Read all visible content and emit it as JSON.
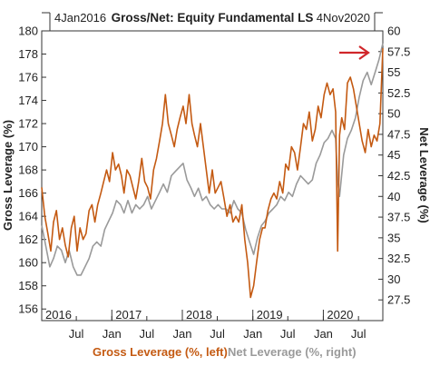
{
  "chart_data": {
    "type": "line",
    "title": "Gross/Net: Equity Fundamental LS",
    "start_label": "4Jan2016",
    "end_label": "4Nov2020",
    "ylabel_left": "Gross Leverage (%)",
    "ylabel_right": "Net Leverage (%)",
    "ylim_left": [
      155,
      180
    ],
    "ylim_right": [
      25,
      60
    ],
    "yticks_left": [
      156,
      158,
      160,
      162,
      164,
      166,
      168,
      170,
      172,
      174,
      176,
      178,
      180
    ],
    "yticks_right": [
      "27.5",
      "30",
      "32.5",
      "35",
      "37.5",
      "40",
      "42.5",
      "45",
      "47.5",
      "50",
      "52.5",
      "55",
      "57.5",
      "60"
    ],
    "x_range": [
      "2016-01-04",
      "2020-11-04"
    ],
    "x_month_ticks": [
      {
        "date": "2016-07-01",
        "label": "Jul"
      },
      {
        "date": "2017-01-01",
        "label": "Jan"
      },
      {
        "date": "2017-07-01",
        "label": "Jul"
      },
      {
        "date": "2018-01-01",
        "label": "Jan"
      },
      {
        "date": "2018-07-01",
        "label": "Jul"
      },
      {
        "date": "2019-01-01",
        "label": "Jan"
      },
      {
        "date": "2019-07-01",
        "label": "Jul"
      },
      {
        "date": "2020-01-01",
        "label": "Jan"
      },
      {
        "date": "2020-07-01",
        "label": "Jul"
      }
    ],
    "x_year_labels": [
      {
        "date": "2016-01-04",
        "label": "2016"
      },
      {
        "date": "2017-01-01",
        "label": "2017"
      },
      {
        "date": "2018-01-01",
        "label": "2018"
      },
      {
        "date": "2019-01-01",
        "label": "2019"
      },
      {
        "date": "2020-01-01",
        "label": "2020"
      }
    ],
    "legend": [
      {
        "name": "Gross Leverage (%, left)",
        "color": "#c45a12"
      },
      {
        "name": "Net Leverage (%, right)",
        "color": "#9a9a9a"
      }
    ],
    "annotation": {
      "type": "arrow",
      "color": "#d0262a",
      "points_to": "2020-11-04"
    },
    "grid": false,
    "series": [
      {
        "name": "Gross Leverage (%, left)",
        "axis": "left",
        "color": "#c45a12",
        "x": [
          "2016-01-04",
          "2016-01-20",
          "2016-02-05",
          "2016-02-20",
          "2016-03-05",
          "2016-03-20",
          "2016-04-05",
          "2016-04-20",
          "2016-05-05",
          "2016-05-20",
          "2016-06-05",
          "2016-06-20",
          "2016-07-05",
          "2016-07-20",
          "2016-08-05",
          "2016-08-20",
          "2016-09-05",
          "2016-09-20",
          "2016-10-05",
          "2016-10-20",
          "2016-11-05",
          "2016-11-20",
          "2016-12-05",
          "2016-12-20",
          "2017-01-05",
          "2017-01-20",
          "2017-02-05",
          "2017-02-20",
          "2017-03-05",
          "2017-03-20",
          "2017-04-05",
          "2017-04-20",
          "2017-05-05",
          "2017-05-20",
          "2017-06-05",
          "2017-06-20",
          "2017-07-05",
          "2017-07-20",
          "2017-08-05",
          "2017-08-20",
          "2017-09-05",
          "2017-09-20",
          "2017-10-05",
          "2017-10-20",
          "2017-11-05",
          "2017-11-20",
          "2017-12-05",
          "2017-12-20",
          "2018-01-05",
          "2018-01-20",
          "2018-02-05",
          "2018-02-20",
          "2018-03-05",
          "2018-03-20",
          "2018-04-05",
          "2018-04-20",
          "2018-05-05",
          "2018-05-20",
          "2018-06-05",
          "2018-06-20",
          "2018-07-05",
          "2018-07-20",
          "2018-08-05",
          "2018-08-20",
          "2018-09-05",
          "2018-09-20",
          "2018-10-05",
          "2018-10-20",
          "2018-11-05",
          "2018-11-20",
          "2018-12-05",
          "2018-12-20",
          "2019-01-05",
          "2019-01-20",
          "2019-02-05",
          "2019-02-20",
          "2019-03-05",
          "2019-03-20",
          "2019-04-05",
          "2019-04-20",
          "2019-05-05",
          "2019-05-20",
          "2019-06-05",
          "2019-06-20",
          "2019-07-05",
          "2019-07-20",
          "2019-08-05",
          "2019-08-20",
          "2019-09-05",
          "2019-09-20",
          "2019-10-05",
          "2019-10-20",
          "2019-11-05",
          "2019-11-20",
          "2019-12-05",
          "2019-12-20",
          "2020-01-05",
          "2020-01-20",
          "2020-02-05",
          "2020-02-20",
          "2020-03-05",
          "2020-03-15",
          "2020-03-25",
          "2020-04-05",
          "2020-04-20",
          "2020-05-05",
          "2020-05-20",
          "2020-06-05",
          "2020-06-20",
          "2020-07-05",
          "2020-07-20",
          "2020-08-05",
          "2020-08-20",
          "2020-09-05",
          "2020-09-20",
          "2020-10-05",
          "2020-10-20",
          "2020-11-04"
        ],
        "values": [
          166.5,
          164.0,
          162.5,
          161.0,
          163.5,
          164.5,
          162.0,
          163.0,
          161.5,
          160.5,
          163.0,
          164.0,
          161.0,
          163.0,
          162.0,
          162.5,
          164.5,
          165.0,
          163.5,
          165.0,
          166.0,
          167.0,
          168.0,
          167.0,
          169.5,
          168.0,
          168.5,
          167.5,
          166.0,
          168.0,
          167.5,
          166.5,
          165.5,
          167.0,
          169.0,
          167.0,
          166.5,
          165.5,
          168.0,
          169.0,
          170.5,
          172.0,
          174.5,
          172.0,
          171.0,
          170.0,
          171.5,
          172.5,
          173.5,
          172.0,
          174.5,
          172.0,
          171.0,
          170.0,
          172.0,
          170.0,
          168.0,
          166.0,
          168.0,
          166.0,
          166.5,
          167.0,
          165.5,
          164.0,
          165.0,
          163.5,
          164.0,
          163.5,
          165.0,
          162.0,
          160.0,
          157.0,
          158.0,
          160.0,
          162.0,
          163.0,
          163.0,
          164.5,
          165.5,
          166.0,
          165.5,
          167.0,
          166.0,
          168.5,
          168.0,
          170.0,
          169.5,
          168.0,
          170.0,
          172.0,
          171.5,
          173.0,
          170.5,
          171.5,
          173.5,
          172.5,
          174.5,
          175.5,
          174.5,
          175.0,
          173.0,
          161.0,
          171.0,
          172.5,
          171.5,
          175.5,
          176.0,
          175.0,
          173.5,
          172.0,
          170.5,
          169.5,
          171.5,
          170.0,
          171.0,
          170.5,
          172.0,
          178.5
        ]
      },
      {
        "name": "Net Leverage (%, right)",
        "axis": "right",
        "color": "#9a9a9a",
        "x": [
          "2016-01-04",
          "2016-01-25",
          "2016-02-15",
          "2016-03-05",
          "2016-03-25",
          "2016-04-15",
          "2016-05-05",
          "2016-05-25",
          "2016-06-15",
          "2016-07-05",
          "2016-07-25",
          "2016-08-15",
          "2016-09-05",
          "2016-09-25",
          "2016-10-15",
          "2016-11-05",
          "2016-11-25",
          "2016-12-15",
          "2017-01-05",
          "2017-01-25",
          "2017-02-15",
          "2017-03-05",
          "2017-03-25",
          "2017-04-15",
          "2017-05-05",
          "2017-05-25",
          "2017-06-15",
          "2017-07-05",
          "2017-07-25",
          "2017-08-15",
          "2017-09-05",
          "2017-09-25",
          "2017-10-15",
          "2017-11-05",
          "2017-11-25",
          "2017-12-15",
          "2018-01-05",
          "2018-01-25",
          "2018-02-15",
          "2018-03-05",
          "2018-03-25",
          "2018-04-15",
          "2018-05-05",
          "2018-05-25",
          "2018-06-15",
          "2018-07-05",
          "2018-07-25",
          "2018-08-15",
          "2018-09-05",
          "2018-09-25",
          "2018-10-15",
          "2018-11-05",
          "2018-11-25",
          "2018-12-15",
          "2019-01-05",
          "2019-01-25",
          "2019-02-15",
          "2019-03-05",
          "2019-03-25",
          "2019-04-15",
          "2019-05-05",
          "2019-05-25",
          "2019-06-15",
          "2019-07-05",
          "2019-07-25",
          "2019-08-15",
          "2019-09-05",
          "2019-09-25",
          "2019-10-15",
          "2019-11-05",
          "2019-11-25",
          "2019-12-15",
          "2020-01-05",
          "2020-01-25",
          "2020-02-15",
          "2020-03-05",
          "2020-03-15",
          "2020-03-25",
          "2020-04-15",
          "2020-05-05",
          "2020-05-25",
          "2020-06-15",
          "2020-07-05",
          "2020-07-25",
          "2020-08-15",
          "2020-09-05",
          "2020-09-25",
          "2020-10-15",
          "2020-11-04"
        ],
        "values": [
          36.5,
          34.0,
          31.5,
          32.5,
          34.0,
          33.5,
          32.0,
          33.5,
          31.5,
          30.5,
          30.5,
          31.5,
          32.5,
          34.0,
          34.5,
          34.0,
          36.0,
          37.0,
          38.0,
          39.5,
          39.0,
          38.0,
          39.5,
          38.0,
          39.0,
          38.5,
          39.0,
          40.0,
          38.5,
          39.5,
          40.5,
          41.5,
          40.5,
          42.5,
          43.0,
          43.5,
          44.0,
          42.0,
          41.0,
          40.0,
          41.0,
          39.5,
          40.0,
          39.0,
          38.5,
          39.0,
          38.5,
          38.5,
          38.0,
          39.5,
          38.5,
          38.0,
          36.0,
          34.5,
          33.0,
          35.0,
          36.5,
          37.0,
          38.0,
          38.5,
          39.0,
          40.0,
          39.5,
          40.5,
          40.0,
          41.5,
          42.5,
          42.0,
          41.5,
          42.0,
          44.0,
          45.0,
          46.5,
          47.0,
          48.0,
          47.0,
          42.0,
          40.0,
          45.0,
          47.0,
          48.0,
          49.5,
          52.0,
          54.0,
          55.0,
          53.5,
          55.0,
          56.5,
          58.5
        ]
      }
    ]
  }
}
